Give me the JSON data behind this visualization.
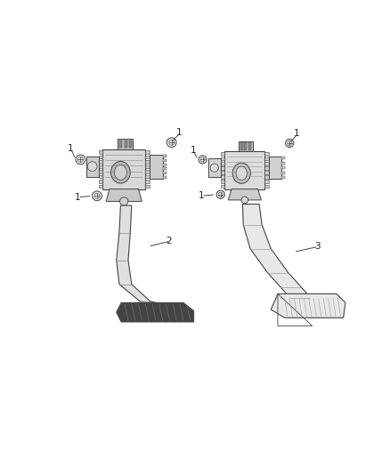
{
  "background_color": "#ffffff",
  "fig_width": 4.38,
  "fig_height": 5.33,
  "dpi": 100,
  "line_color": "#444444",
  "label_color": "#222222",
  "label_fontsize": 7.5
}
